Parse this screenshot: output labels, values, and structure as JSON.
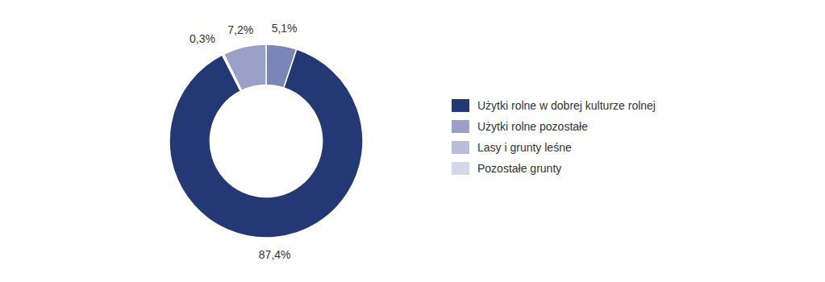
{
  "chart_data": {
    "type": "donut",
    "values": [
      5.1,
      87.4,
      0.3,
      7.2
    ],
    "value_labels": [
      "5,1%",
      "87,4%",
      "0,3%",
      "7,2%"
    ],
    "colors": [
      "#7b86b8",
      "#253876",
      "#e0e3ef",
      "#9aa0c8"
    ],
    "data_labels": true,
    "legend": "right",
    "legend_labels": [
      "Użytki rolne w dobrej kulturze rolnej",
      "Użytki rolne pozostałe",
      "Lasy i grunty leśne",
      "Pozostałe grunty"
    ],
    "legend_colors": [
      "#253876",
      "#9aa0c8",
      "#b8bdd8",
      "#d4d8eb"
    ]
  }
}
